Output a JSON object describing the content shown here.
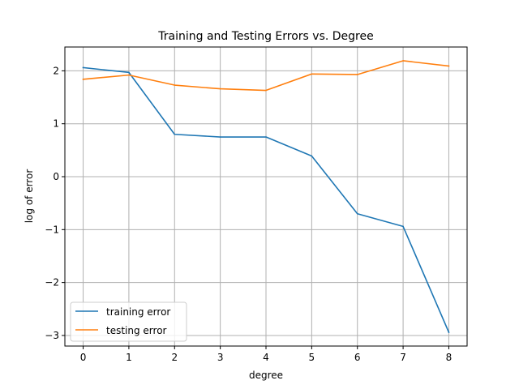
{
  "chart_data": {
    "type": "line",
    "title": "Training and Testing Errors vs. Degree",
    "xlabel": "degree",
    "ylabel": "log of error",
    "x": [
      0,
      1,
      2,
      3,
      4,
      5,
      6,
      7,
      8
    ],
    "xlim": [
      -0.4,
      8.4
    ],
    "ylim": [
      -3.2,
      2.45
    ],
    "xticks": [
      0,
      1,
      2,
      3,
      4,
      5,
      6,
      7,
      8
    ],
    "xtick_labels": [
      "0",
      "1",
      "2",
      "3",
      "4",
      "5",
      "6",
      "7",
      "8"
    ],
    "yticks": [
      -3,
      -2,
      -1,
      0,
      1,
      2
    ],
    "ytick_labels": [
      "−3",
      "−2",
      "−1",
      "0",
      "1",
      "2"
    ],
    "grid": true,
    "legend_position": "lower-left",
    "series": [
      {
        "name": "training error",
        "color": "#1f77b4",
        "values": [
          2.06,
          1.97,
          0.8,
          0.75,
          0.75,
          0.39,
          -0.7,
          -0.94,
          -2.94
        ]
      },
      {
        "name": "testing error",
        "color": "#ff7f0e",
        "values": [
          1.84,
          1.92,
          1.73,
          1.66,
          1.63,
          1.94,
          1.93,
          2.19,
          2.09
        ]
      }
    ]
  }
}
